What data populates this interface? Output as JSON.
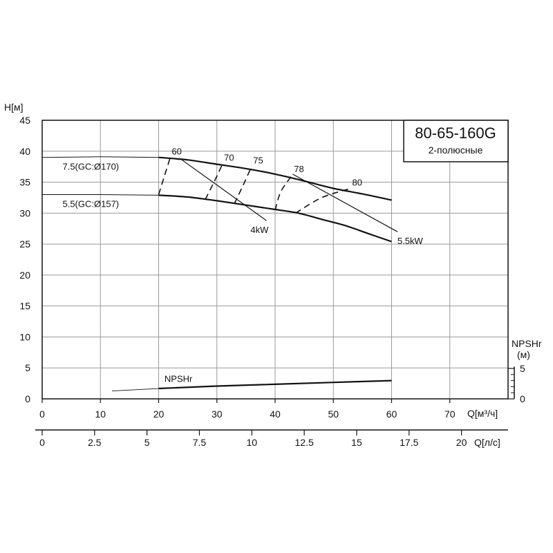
{
  "chart_data": {
    "type": "line",
    "title": "80-65-160G",
    "subtitle": "2-полюсные",
    "ylabel": "H[м]",
    "xlabel": "Q[м³/ч]",
    "x2label": "Q[л/с]",
    "y2label_line1": "NPSHr",
    "y2label_line2": "(м)",
    "grid": true,
    "xlim": [
      0,
      80
    ],
    "ylim": [
      0,
      45
    ],
    "x_ticks": [
      "0",
      "10",
      "20",
      "30",
      "40",
      "50",
      "60",
      "70"
    ],
    "x2_ticks": [
      "0",
      "2.5",
      "5",
      "7.5",
      "10",
      "12.5",
      "15",
      "17.5",
      "20"
    ],
    "y_ticks": [
      "0",
      "5",
      "10",
      "15",
      "20",
      "25",
      "30",
      "35",
      "40",
      "45"
    ],
    "y2_ticks": [
      "0",
      "5"
    ],
    "x2_tick_values": [
      0,
      2.5,
      5,
      7.5,
      10,
      12.5,
      15,
      17.5,
      20
    ],
    "y2_tick_values": [
      0,
      5
    ],
    "y2_minor_values": [
      1,
      2,
      3,
      4
    ],
    "head_curves": [
      {
        "name": "7.5(GC:Ø170)",
        "x_dashed": [
          0,
          10,
          20
        ],
        "y_dashed": [
          39.0,
          39.1,
          39.0
        ],
        "x": [
          20,
          25,
          30,
          35,
          40,
          45,
          50,
          55,
          60
        ],
        "y": [
          39.0,
          38.6,
          37.9,
          37.2,
          36.3,
          35.2,
          34.0,
          33.1,
          32.1
        ]
      },
      {
        "name": "5.5(GC:Ø157)",
        "x_dashed": [
          0,
          10,
          20
        ],
        "y_dashed": [
          33.0,
          33.0,
          32.9
        ],
        "x": [
          20,
          25,
          30,
          35,
          40,
          44,
          48,
          52,
          56,
          60
        ],
        "y": [
          32.9,
          32.6,
          32.0,
          31.3,
          30.6,
          30.0,
          29.0,
          28.0,
          26.7,
          25.4
        ]
      }
    ],
    "efficiency_curves": [
      {
        "name": "60",
        "x": [
          20,
          21,
          22
        ],
        "y": [
          33.0,
          36.0,
          39.0
        ]
      },
      {
        "name": "70",
        "x": [
          28,
          29.5,
          31
        ],
        "y": [
          32.2,
          35.0,
          38.0
        ]
      },
      {
        "name": "75",
        "x": [
          33,
          34.5,
          36
        ],
        "y": [
          31.5,
          34.5,
          37.6
        ]
      },
      {
        "name": "78",
        "x": [
          40,
          41,
          43
        ],
        "y": [
          30.5,
          33.5,
          36.2
        ]
      },
      {
        "name": "80",
        "x": [
          43.5,
          48,
          53
        ],
        "y": [
          30.0,
          32.5,
          34.0
        ]
      }
    ],
    "power_lines": [
      {
        "name": "4kW",
        "x": [
          24,
          38.5
        ],
        "y": [
          38.6,
          28.8
        ]
      },
      {
        "name": "5.5kW",
        "x": [
          43,
          61
        ],
        "y": [
          36.3,
          27.0
        ]
      }
    ],
    "npsh": {
      "name": "NPSHr",
      "x_thin": [
        12,
        20
      ],
      "y_thin": [
        1.3,
        1.7
      ],
      "x": [
        20,
        30,
        40,
        50,
        60
      ],
      "y": [
        1.7,
        2.1,
        2.4,
        2.7,
        3.0
      ]
    }
  }
}
